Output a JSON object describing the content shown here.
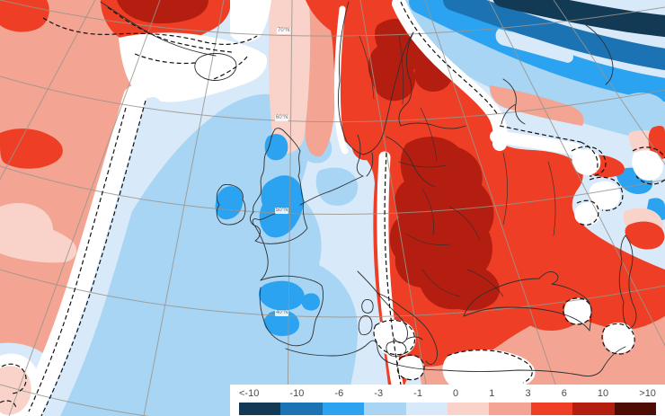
{
  "map": {
    "kind": "temperature-anomaly-map",
    "graticule": {
      "lat70": "70°N",
      "lat60": "60°N",
      "lat50": "50°N",
      "lat40": "40°N"
    },
    "anomaly_regions": [
      {
        "name": "strong-warm-scandinavia-eastern-europe",
        "palette_class": "3_6",
        "core_class": "6_10"
      },
      {
        "name": "warm-greenland-coast",
        "palette_class": "3_6",
        "core_class": "6_10"
      },
      {
        "name": "warm-west-atlantic-strip",
        "palette_class": "1_3"
      },
      {
        "name": "warm-east-mediterranean-middle-east",
        "palette_class": "1_3"
      },
      {
        "name": "cold-arctic-north-east",
        "palette_class": "-10_-6",
        "extreme_class": "below_-10"
      },
      {
        "name": "cold-british-isles",
        "palette_class": "-6_-3"
      },
      {
        "name": "cold-iberia",
        "palette_class": "-6_-3"
      },
      {
        "name": "cold-central-atlantic",
        "palette_class": "-3_-1"
      },
      {
        "name": "neutral-white-bands",
        "palette_class": "near_0"
      }
    ]
  },
  "legend": {
    "tick_labels": [
      "<-10",
      "-10",
      "-6",
      "-3",
      "-1",
      "0",
      "1",
      "3",
      "6",
      "10",
      ">10"
    ],
    "colors": [
      "#133a55",
      "#1b73b3",
      "#2ba3f0",
      "#a9d5f4",
      "#d8eafa",
      "#f9d3ca",
      "#f3a492",
      "#ee3e25",
      "#b41e10",
      "#4d0d05"
    ],
    "panel_background": "#ffffff",
    "neutral_color": "#ffffff"
  }
}
